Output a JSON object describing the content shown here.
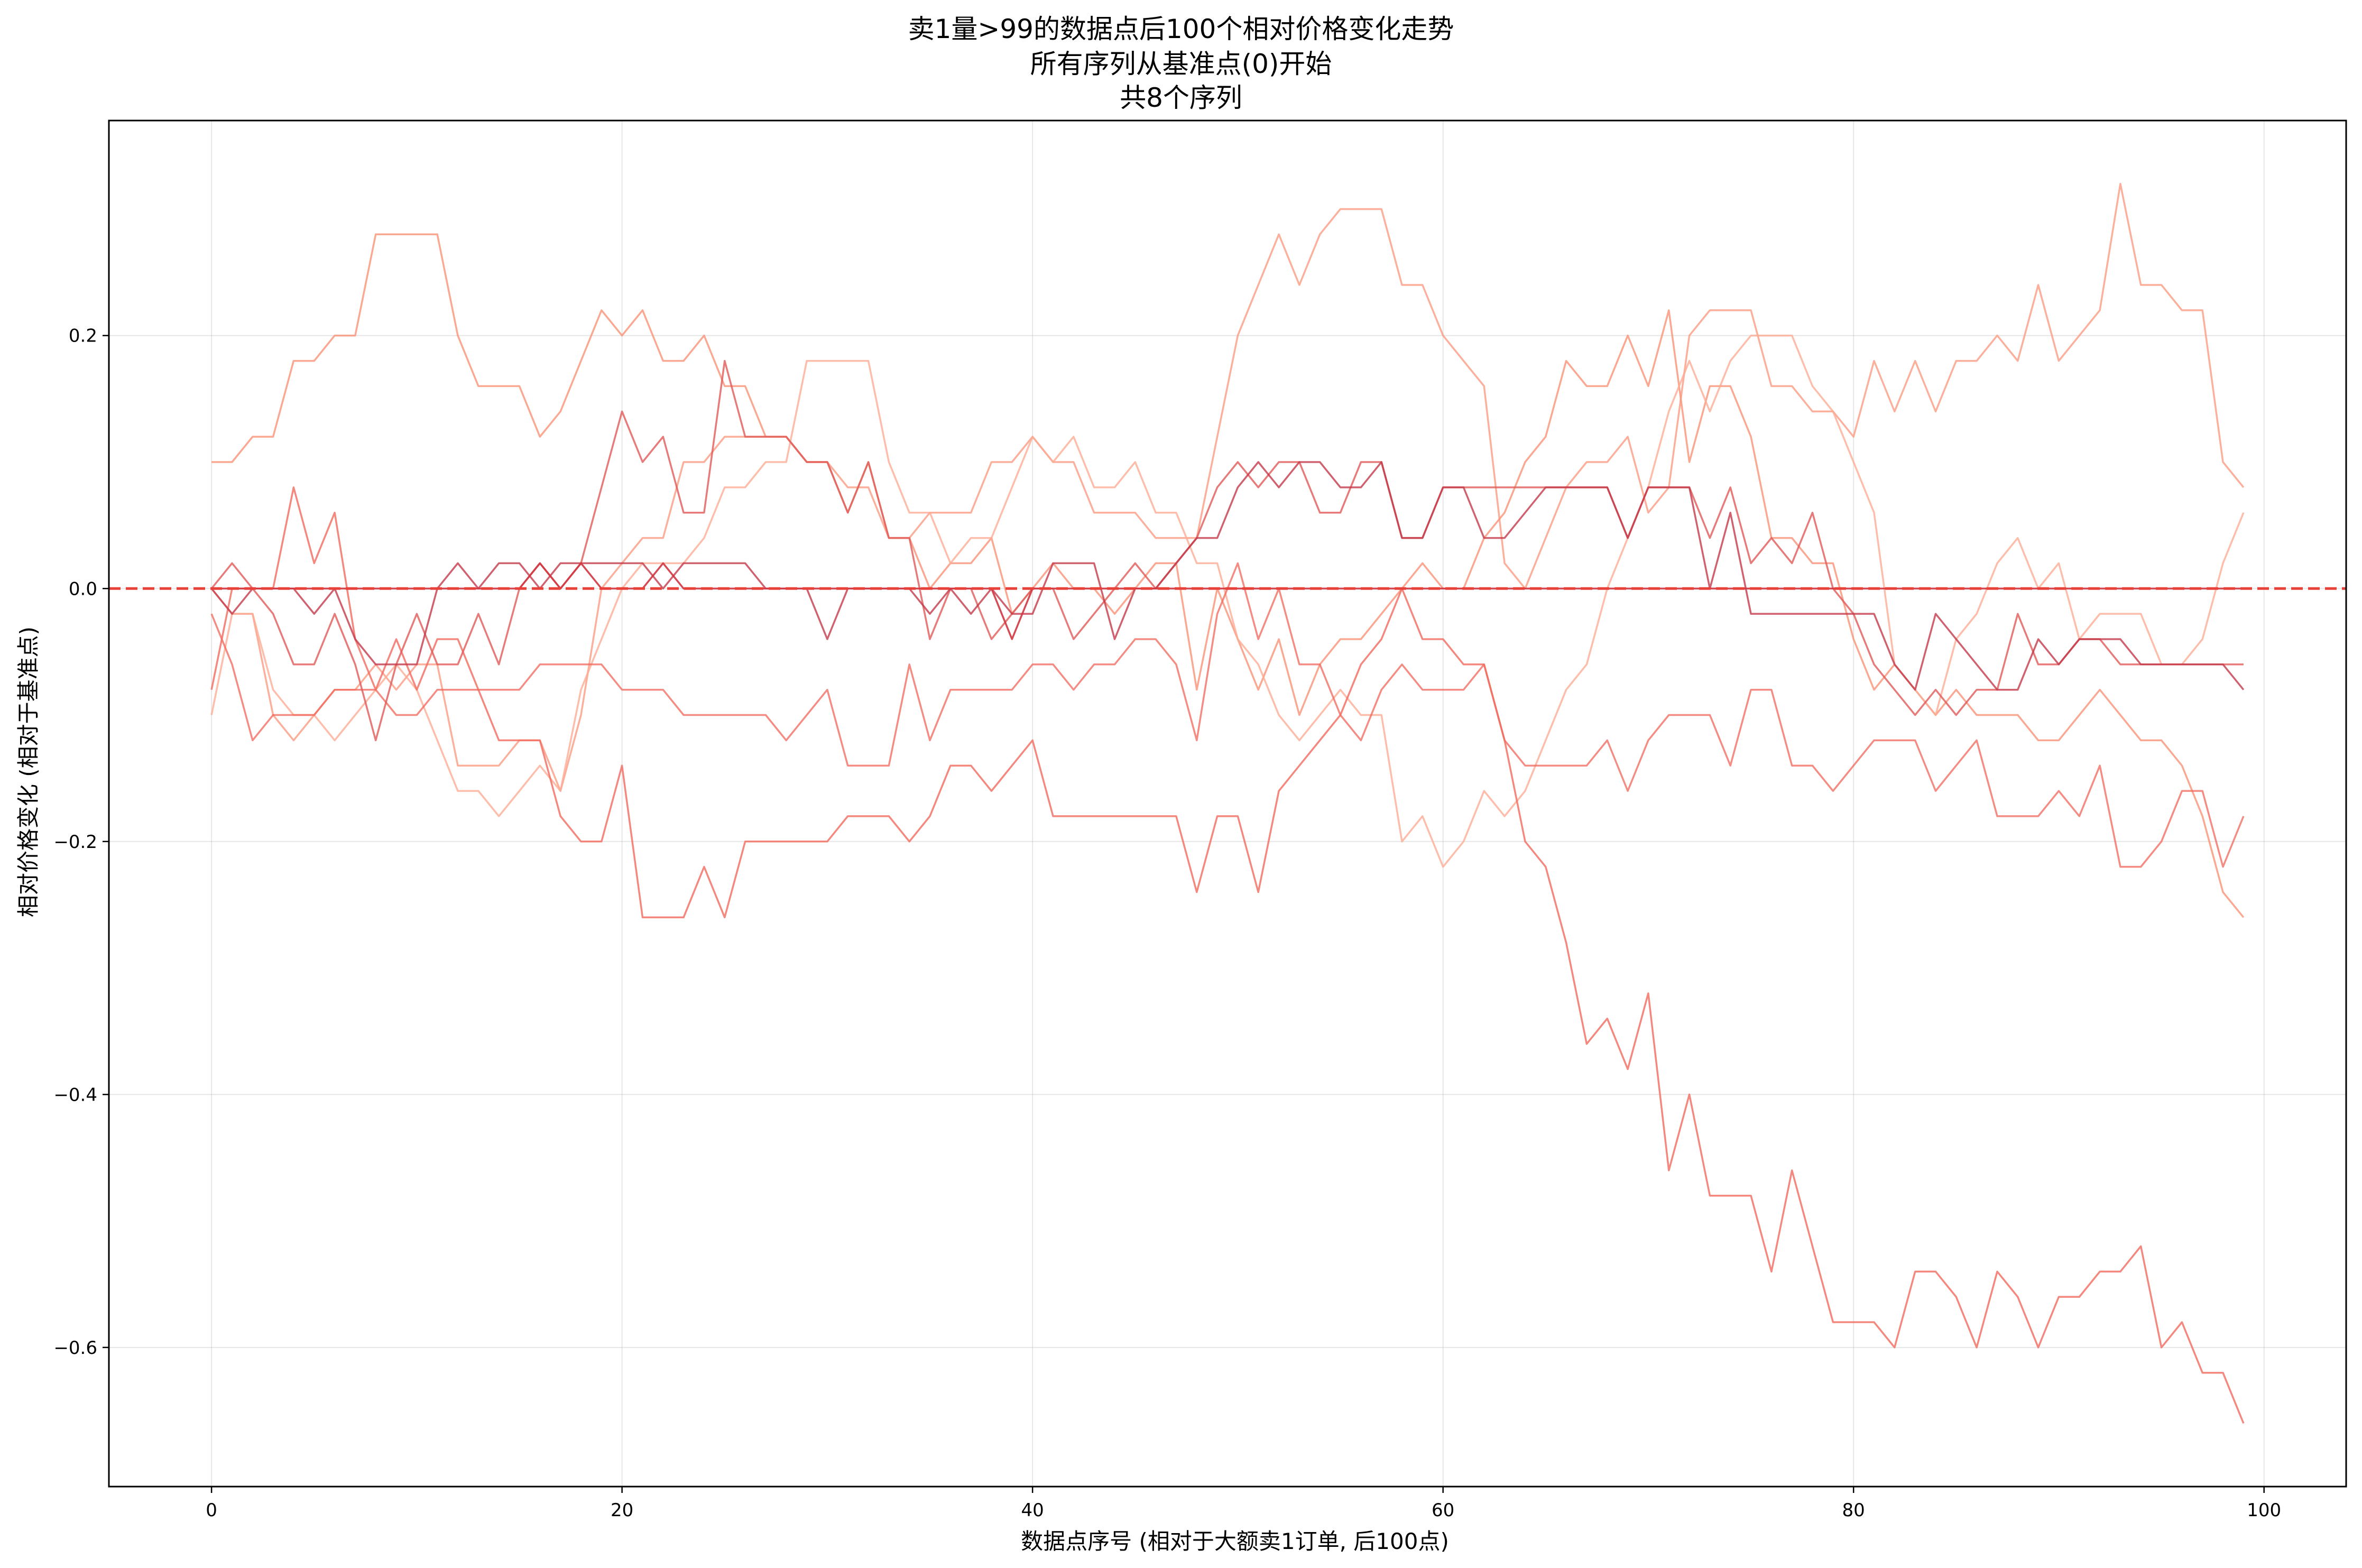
{
  "chart_data": {
    "type": "line",
    "title_lines": [
      "卖1量>99的数据点后100个相对价格变化走势",
      "所有序列从基准点(0)开始",
      "共8个序列"
    ],
    "xlabel": "数据点序号 (相对于大额卖1订单, 后100点)",
    "ylabel": "相对价格变化 (相对于基准点)",
    "xlim": [
      -5,
      104
    ],
    "ylim": [
      -0.71,
      0.37
    ],
    "xticks": [
      0,
      20,
      40,
      60,
      80,
      100
    ],
    "yticks": [
      0.2,
      0.0,
      -0.2,
      -0.4,
      -0.6
    ],
    "xtick_labels": [
      "0",
      "20",
      "40",
      "60",
      "80",
      "100"
    ],
    "ytick_labels": [
      "0.2",
      "0.0",
      "−0.2",
      "−0.4",
      "−0.6"
    ],
    "grid": true,
    "reference_line": {
      "y": 0.0,
      "style": "dashed",
      "color": "#e8413a"
    },
    "series": [
      {
        "color": "#fa8b6e",
        "opacity": 0.75,
        "values": [
          0.1,
          0.1,
          0.12,
          0.12,
          0.18,
          0.18,
          0.2,
          0.2,
          0.28,
          0.28,
          0.28,
          0.28,
          0.2,
          0.16,
          0.16,
          0.16,
          0.12,
          0.14,
          0.18,
          0.22,
          0.2,
          0.22,
          0.18,
          0.18,
          0.2,
          0.16,
          0.16,
          0.12,
          0.12,
          0.1,
          0.1,
          0.06,
          0.1,
          0.04,
          0.04,
          0.0,
          0.02,
          0.02,
          0.04,
          -0.02,
          0.0,
          0.02,
          0.0,
          0.0,
          -0.02,
          0.0,
          0.02,
          0.02,
          -0.08,
          0.0,
          -0.04,
          -0.08,
          -0.04,
          -0.1,
          -0.06,
          -0.04,
          -0.04,
          -0.02,
          0.0,
          0.02,
          0.0,
          0.0,
          0.04,
          0.06,
          0.1,
          0.12,
          0.18,
          0.16,
          0.16,
          0.2,
          0.16,
          0.22,
          0.1,
          0.16,
          0.16,
          0.12,
          0.04,
          0.04,
          0.02,
          0.02,
          -0.04,
          -0.08,
          -0.06,
          -0.08,
          -0.1,
          -0.08,
          -0.1,
          -0.1,
          -0.1,
          -0.12,
          -0.12,
          -0.1,
          -0.08,
          -0.1,
          -0.12,
          -0.12,
          -0.14,
          -0.18,
          -0.24,
          -0.26
        ]
      },
      {
        "color": "#fb9479",
        "opacity": 0.75,
        "values": [
          0.0,
          -0.02,
          -0.02,
          -0.1,
          -0.12,
          -0.1,
          -0.08,
          -0.08,
          -0.06,
          -0.08,
          -0.06,
          -0.06,
          -0.14,
          -0.14,
          -0.14,
          -0.12,
          -0.12,
          -0.16,
          -0.1,
          0.0,
          0.02,
          0.04,
          0.04,
          0.1,
          0.1,
          0.12,
          0.12,
          0.12,
          0.12,
          0.1,
          0.1,
          0.08,
          0.08,
          0.04,
          0.04,
          0.06,
          0.06,
          0.06,
          0.1,
          0.1,
          0.12,
          0.1,
          0.1,
          0.06,
          0.06,
          0.06,
          0.04,
          0.04,
          0.04,
          0.12,
          0.2,
          0.24,
          0.28,
          0.24,
          0.28,
          0.3,
          0.3,
          0.3,
          0.24,
          0.24,
          0.2,
          0.18,
          0.16,
          0.02,
          0.0,
          0.04,
          0.08,
          0.1,
          0.1,
          0.12,
          0.06,
          0.08,
          0.2,
          0.22,
          0.22,
          0.22,
          0.16,
          0.16,
          0.14,
          0.14,
          0.12,
          0.18,
          0.14,
          0.18,
          0.14,
          0.18,
          0.18,
          0.2,
          0.18,
          0.24,
          0.18,
          0.2,
          0.22,
          0.32,
          0.24,
          0.24,
          0.22,
          0.22,
          0.1,
          0.08
        ]
      },
      {
        "color": "#fcac95",
        "opacity": 0.8,
        "values": [
          -0.1,
          -0.02,
          -0.02,
          -0.08,
          -0.1,
          -0.1,
          -0.12,
          -0.1,
          -0.08,
          -0.06,
          -0.08,
          -0.12,
          -0.16,
          -0.16,
          -0.18,
          -0.16,
          -0.14,
          -0.16,
          -0.08,
          -0.04,
          0.0,
          0.02,
          0.02,
          0.02,
          0.04,
          0.08,
          0.08,
          0.1,
          0.1,
          0.18,
          0.18,
          0.18,
          0.18,
          0.1,
          0.06,
          0.06,
          0.02,
          0.04,
          0.04,
          0.08,
          0.12,
          0.1,
          0.12,
          0.08,
          0.08,
          0.1,
          0.06,
          0.06,
          0.02,
          0.02,
          -0.04,
          -0.06,
          -0.1,
          -0.12,
          -0.1,
          -0.08,
          -0.1,
          -0.1,
          -0.2,
          -0.18,
          -0.22,
          -0.2,
          -0.16,
          -0.18,
          -0.16,
          -0.12,
          -0.08,
          -0.06,
          0.0,
          0.04,
          0.08,
          0.14,
          0.18,
          0.14,
          0.18,
          0.2,
          0.2,
          0.2,
          0.16,
          0.14,
          0.1,
          0.06,
          -0.06,
          -0.08,
          -0.1,
          -0.04,
          -0.02,
          0.02,
          0.04,
          0.0,
          0.02,
          -0.04,
          -0.02,
          -0.02,
          -0.02,
          -0.06,
          -0.06,
          -0.04,
          0.02,
          0.06
        ]
      },
      {
        "color": "#f0655a",
        "opacity": 0.75,
        "values": [
          -0.02,
          -0.06,
          -0.12,
          -0.1,
          -0.1,
          -0.1,
          -0.08,
          -0.08,
          -0.08,
          -0.1,
          -0.1,
          -0.08,
          -0.08,
          -0.08,
          -0.08,
          -0.08,
          -0.06,
          -0.06,
          -0.06,
          -0.06,
          -0.08,
          -0.08,
          -0.08,
          -0.1,
          -0.1,
          -0.1,
          -0.1,
          -0.1,
          -0.12,
          -0.1,
          -0.08,
          -0.14,
          -0.14,
          -0.14,
          -0.06,
          -0.12,
          -0.08,
          -0.08,
          -0.08,
          -0.08,
          -0.06,
          -0.06,
          -0.08,
          -0.06,
          -0.06,
          -0.04,
          -0.04,
          -0.06,
          -0.12,
          -0.02,
          0.02,
          -0.04,
          0.0,
          -0.06,
          -0.06,
          -0.1,
          -0.12,
          -0.08,
          -0.06,
          -0.08,
          -0.08,
          -0.08,
          -0.06,
          -0.12,
          -0.14,
          -0.14,
          -0.14,
          -0.14,
          -0.12,
          -0.16,
          -0.12,
          -0.1,
          -0.1,
          -0.1,
          -0.14,
          -0.08,
          -0.08,
          -0.14,
          -0.14,
          -0.16,
          -0.14,
          -0.12,
          -0.12,
          -0.12,
          -0.16,
          -0.14,
          -0.12,
          -0.18,
          -0.18,
          -0.18,
          -0.16,
          -0.18,
          -0.14,
          -0.22,
          -0.22,
          -0.2,
          -0.16,
          -0.16,
          -0.22,
          -0.18
        ]
      },
      {
        "color": "#f26a5e",
        "opacity": 0.8,
        "values": [
          -0.08,
          0.0,
          0.0,
          0.0,
          0.08,
          0.02,
          0.06,
          -0.04,
          -0.08,
          -0.04,
          -0.08,
          -0.04,
          -0.04,
          -0.08,
          -0.12,
          -0.12,
          -0.12,
          -0.18,
          -0.2,
          -0.2,
          -0.14,
          -0.26,
          -0.26,
          -0.26,
          -0.22,
          -0.26,
          -0.2,
          -0.2,
          -0.2,
          -0.2,
          -0.2,
          -0.18,
          -0.18,
          -0.18,
          -0.2,
          -0.18,
          -0.14,
          -0.14,
          -0.16,
          -0.14,
          -0.12,
          -0.18,
          -0.18,
          -0.18,
          -0.18,
          -0.18,
          -0.18,
          -0.18,
          -0.24,
          -0.18,
          -0.18,
          -0.24,
          -0.16,
          -0.14,
          -0.12,
          -0.1,
          -0.06,
          -0.04,
          0.0,
          -0.04,
          -0.04,
          -0.06,
          -0.06,
          -0.12,
          -0.2,
          -0.22,
          -0.28,
          -0.36,
          -0.34,
          -0.38,
          -0.32,
          -0.46,
          -0.4,
          -0.48,
          -0.48,
          -0.48,
          -0.54,
          -0.46,
          -0.52,
          -0.58,
          -0.58,
          -0.58,
          -0.6,
          -0.54,
          -0.54,
          -0.56,
          -0.6,
          -0.54,
          -0.56,
          -0.6,
          -0.56,
          -0.56,
          -0.54,
          -0.54,
          -0.52,
          -0.6,
          -0.58,
          -0.62,
          -0.62,
          -0.66
        ]
      },
      {
        "color": "#e05a57",
        "opacity": 0.8,
        "values": [
          0.0,
          0.02,
          0.0,
          -0.02,
          -0.06,
          -0.06,
          -0.02,
          -0.06,
          -0.12,
          -0.06,
          -0.02,
          -0.06,
          -0.06,
          -0.02,
          -0.06,
          0.0,
          0.02,
          0.0,
          0.02,
          0.08,
          0.14,
          0.1,
          0.12,
          0.06,
          0.06,
          0.18,
          0.12,
          0.12,
          0.12,
          0.1,
          0.1,
          0.06,
          0.1,
          0.04,
          0.04,
          -0.04,
          0.0,
          0.0,
          -0.04,
          -0.02,
          0.0,
          0.0,
          -0.04,
          -0.02,
          0.0,
          0.02,
          0.0,
          0.02,
          0.04,
          0.08,
          0.1,
          0.08,
          0.1,
          0.1,
          0.06,
          0.06,
          0.1,
          0.1,
          0.04,
          0.04,
          0.08,
          0.08,
          0.08,
          0.08,
          0.08,
          0.08,
          0.08,
          0.08,
          0.08,
          0.04,
          0.08,
          0.08,
          0.08,
          0.04,
          0.08,
          0.02,
          0.04,
          0.02,
          0.06,
          0.0,
          -0.02,
          -0.06,
          -0.08,
          -0.1,
          -0.08,
          -0.1,
          -0.08,
          -0.08,
          -0.02,
          -0.06,
          -0.06,
          -0.04,
          -0.04,
          -0.06,
          -0.06,
          -0.06,
          -0.06,
          -0.06,
          -0.06,
          -0.06
        ]
      },
      {
        "color": "#c43a4a",
        "opacity": 0.8,
        "values": [
          0.0,
          -0.02,
          0.0,
          0.0,
          0.0,
          -0.02,
          0.0,
          -0.04,
          -0.06,
          -0.06,
          -0.06,
          0.0,
          0.02,
          0.0,
          0.02,
          0.02,
          0.0,
          0.02,
          0.02,
          0.02,
          0.02,
          0.02,
          0.0,
          0.02,
          0.02,
          0.02,
          0.02,
          0.0,
          0.0,
          0.0,
          -0.04,
          0.0,
          0.0,
          0.0,
          0.0,
          -0.02,
          0.0,
          -0.02,
          0.0,
          -0.02,
          -0.02,
          0.02,
          0.02,
          0.02,
          -0.04,
          0.0,
          0.0,
          0.02,
          0.04,
          0.04,
          0.08,
          0.1,
          0.08,
          0.1,
          0.1,
          0.08,
          0.08,
          0.1,
          0.04,
          0.04,
          0.08,
          0.08,
          0.04,
          0.04,
          0.06,
          0.08,
          0.08,
          0.08,
          0.08,
          0.04,
          0.08,
          0.08,
          0.08,
          0.0,
          0.06,
          -0.02,
          -0.02,
          -0.02,
          -0.02,
          -0.02,
          -0.02,
          -0.02,
          -0.06,
          -0.08,
          -0.02,
          -0.04,
          -0.06,
          -0.08,
          -0.08,
          -0.04,
          -0.06,
          -0.04,
          -0.04,
          -0.04,
          -0.06,
          -0.06,
          -0.06,
          -0.06,
          -0.06,
          -0.08
        ]
      },
      {
        "color": "#d23640",
        "opacity": 0.9,
        "values": [
          0.0,
          0.0,
          0.0,
          0.0,
          0.0,
          0.0,
          0.0,
          0.0,
          0.0,
          0.0,
          0.0,
          0.0,
          0.0,
          0.0,
          0.0,
          0.0,
          0.02,
          0.0,
          0.02,
          0.0,
          0.0,
          0.0,
          0.02,
          0.0,
          0.0,
          0.0,
          0.0,
          0.0,
          0.0,
          0.0,
          0.0,
          0.0,
          0.0,
          0.0,
          0.0,
          0.0,
          0.0,
          0.0,
          0.0,
          -0.04,
          0.0,
          0.0,
          0.0,
          0.0,
          0.0,
          0.0,
          0.0,
          0.0,
          0.0,
          0.0,
          0.0,
          0.0,
          0.0,
          0.0,
          0.0,
          0.0,
          0.0,
          0.0,
          0.0,
          0.0,
          0.0,
          0.0,
          0.0,
          0.0,
          0.0,
          0.0,
          0.0,
          0.0,
          0.0,
          0.0,
          0.0,
          0.0,
          0.0,
          0.0,
          0.0,
          0.0,
          0.0,
          0.0,
          0.0,
          0.0,
          0.0,
          0.0,
          0.0,
          0.0,
          0.0,
          0.0,
          0.0,
          0.0,
          0.0,
          0.0,
          0.0,
          0.0,
          0.0,
          0.0,
          0.0,
          0.0,
          0.0,
          0.0,
          0.0,
          0.0
        ]
      }
    ]
  }
}
